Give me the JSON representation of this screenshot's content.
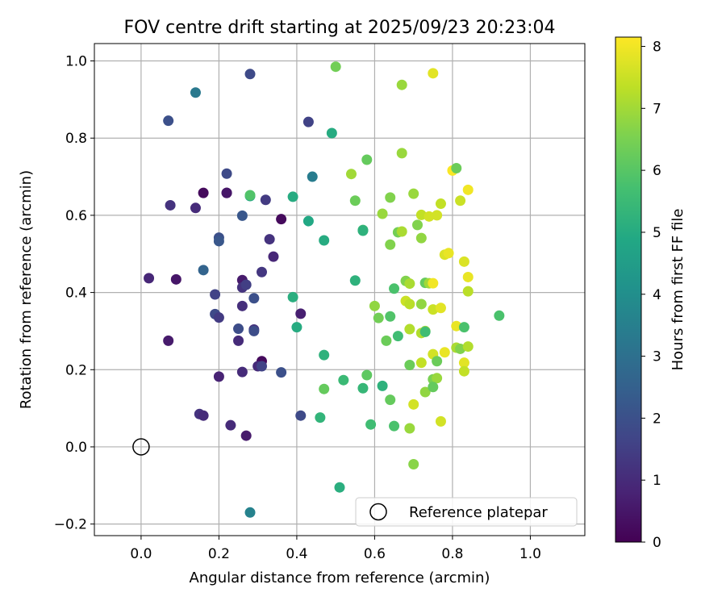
{
  "chart_data": {
    "type": "scatter",
    "title": "FOV centre drift starting at 2025/09/23 20:23:04",
    "xlabel": "Angular distance from reference (arcmin)",
    "ylabel": "Rotation from reference (arcmin)",
    "xlim": [
      -0.12,
      1.14
    ],
    "ylim": [
      -0.23,
      1.045
    ],
    "x_ticks": [
      0.0,
      0.2,
      0.4,
      0.6,
      0.8,
      1.0
    ],
    "x_tick_labels": [
      "0.0",
      "0.2",
      "0.4",
      "0.6",
      "0.8",
      "1.0"
    ],
    "y_ticks": [
      -0.2,
      0.0,
      0.2,
      0.4,
      0.6,
      0.8,
      1.0
    ],
    "y_tick_labels": [
      "−0.2",
      "0.0",
      "0.2",
      "0.4",
      "0.6",
      "0.8",
      "1.0"
    ],
    "grid": true,
    "colormap": "viridis",
    "colorbar": {
      "label": "Hours from first FF file",
      "range": [
        0,
        8.15
      ],
      "ticks": [
        0,
        1,
        2,
        3,
        4,
        5,
        6,
        7,
        8
      ],
      "tick_labels": [
        "0",
        "1",
        "2",
        "3",
        "4",
        "5",
        "6",
        "7",
        "8"
      ]
    },
    "legend": {
      "label": "Reference platepar",
      "location": "lower-right"
    },
    "reference_point": {
      "x": 0.0,
      "y": 0.0
    },
    "points": [
      {
        "x": 0.28,
        "y": 0.966,
        "t": 1.8
      },
      {
        "x": 0.14,
        "y": 0.918,
        "t": 3.3
      },
      {
        "x": 0.07,
        "y": 0.845,
        "t": 2.0
      },
      {
        "x": 0.22,
        "y": 0.708,
        "t": 1.8
      },
      {
        "x": 0.16,
        "y": 0.658,
        "t": 0.2
      },
      {
        "x": 0.22,
        "y": 0.658,
        "t": 0.3
      },
      {
        "x": 0.22,
        "y": 0.658,
        "t": 0.5
      },
      {
        "x": 0.075,
        "y": 0.626,
        "t": 1.2
      },
      {
        "x": 0.14,
        "y": 0.619,
        "t": 1.0
      },
      {
        "x": 0.26,
        "y": 0.599,
        "t": 2.2
      },
      {
        "x": 0.2,
        "y": 0.542,
        "t": 2.0
      },
      {
        "x": 0.2,
        "y": 0.533,
        "t": 2.2
      },
      {
        "x": 0.16,
        "y": 0.458,
        "t": 2.6
      },
      {
        "x": 0.02,
        "y": 0.437,
        "t": 0.9
      },
      {
        "x": 0.09,
        "y": 0.434,
        "t": 0.5
      },
      {
        "x": 0.26,
        "y": 0.432,
        "t": 0.6
      },
      {
        "x": 0.26,
        "y": 0.413,
        "t": 1.2
      },
      {
        "x": 0.27,
        "y": 0.42,
        "t": 1.5
      },
      {
        "x": 0.19,
        "y": 0.395,
        "t": 1.6
      },
      {
        "x": 0.29,
        "y": 0.385,
        "t": 2.0
      },
      {
        "x": 0.26,
        "y": 0.365,
        "t": 1.1
      },
      {
        "x": 0.19,
        "y": 0.344,
        "t": 1.8
      },
      {
        "x": 0.2,
        "y": 0.335,
        "t": 1.4
      },
      {
        "x": 0.25,
        "y": 0.306,
        "t": 1.9
      },
      {
        "x": 0.29,
        "y": 0.304,
        "t": 1.2
      },
      {
        "x": 0.29,
        "y": 0.3,
        "t": 1.9
      },
      {
        "x": 0.07,
        "y": 0.275,
        "t": 0.6
      },
      {
        "x": 0.25,
        "y": 0.275,
        "t": 1.0
      },
      {
        "x": 0.31,
        "y": 0.222,
        "t": 0.2
      },
      {
        "x": 0.3,
        "y": 0.209,
        "t": 1.0
      },
      {
        "x": 0.31,
        "y": 0.209,
        "t": 1.6
      },
      {
        "x": 0.26,
        "y": 0.194,
        "t": 1.0
      },
      {
        "x": 0.36,
        "y": 0.193,
        "t": 2.0
      },
      {
        "x": 0.2,
        "y": 0.182,
        "t": 0.8
      },
      {
        "x": 0.15,
        "y": 0.085,
        "t": 1.2
      },
      {
        "x": 0.16,
        "y": 0.081,
        "t": 1.0
      },
      {
        "x": 0.41,
        "y": 0.081,
        "t": 1.8
      },
      {
        "x": 0.23,
        "y": 0.056,
        "t": 1.0
      },
      {
        "x": 0.27,
        "y": 0.029,
        "t": 0.6
      },
      {
        "x": 0.28,
        "y": -0.17,
        "t": 3.6
      },
      {
        "x": 0.32,
        "y": 0.64,
        "t": 1.4
      },
      {
        "x": 0.33,
        "y": 0.538,
        "t": 1.2
      },
      {
        "x": 0.36,
        "y": 0.59,
        "t": 0.2
      },
      {
        "x": 0.31,
        "y": 0.453,
        "t": 1.3
      },
      {
        "x": 0.34,
        "y": 0.493,
        "t": 0.9
      },
      {
        "x": 0.41,
        "y": 0.345,
        "t": 0.7
      },
      {
        "x": 0.43,
        "y": 0.842,
        "t": 1.6
      },
      {
        "x": 0.44,
        "y": 0.7,
        "t": 3.4
      },
      {
        "x": 0.28,
        "y": 0.65,
        "t": 4.8
      },
      {
        "x": 0.28,
        "y": 0.652,
        "t": 5.9
      },
      {
        "x": 0.39,
        "y": 0.648,
        "t": 5.0
      },
      {
        "x": 0.43,
        "y": 0.585,
        "t": 4.9
      },
      {
        "x": 0.47,
        "y": 0.535,
        "t": 5.0
      },
      {
        "x": 0.39,
        "y": 0.388,
        "t": 5.1
      },
      {
        "x": 0.4,
        "y": 0.31,
        "t": 5.0
      },
      {
        "x": 0.47,
        "y": 0.238,
        "t": 5.2
      },
      {
        "x": 0.49,
        "y": 0.813,
        "t": 5.0
      },
      {
        "x": 0.5,
        "y": 0.985,
        "t": 6.4
      },
      {
        "x": 0.54,
        "y": 0.707,
        "t": 7.0
      },
      {
        "x": 0.58,
        "y": 0.744,
        "t": 6.2
      },
      {
        "x": 0.55,
        "y": 0.638,
        "t": 6.3
      },
      {
        "x": 0.57,
        "y": 0.562,
        "t": 5.5
      },
      {
        "x": 0.57,
        "y": 0.56,
        "t": 5.2
      },
      {
        "x": 0.55,
        "y": 0.431,
        "t": 5.2
      },
      {
        "x": 0.47,
        "y": 0.15,
        "t": 6.2
      },
      {
        "x": 0.52,
        "y": 0.173,
        "t": 5.5
      },
      {
        "x": 0.46,
        "y": 0.076,
        "t": 5.3
      },
      {
        "x": 0.51,
        "y": -0.105,
        "t": 5.1
      },
      {
        "x": 0.57,
        "y": 0.152,
        "t": 5.4
      },
      {
        "x": 0.58,
        "y": 0.186,
        "t": 6.1
      },
      {
        "x": 0.59,
        "y": 0.058,
        "t": 5.6
      },
      {
        "x": 0.6,
        "y": 0.365,
        "t": 6.8
      },
      {
        "x": 0.61,
        "y": 0.334,
        "t": 6.4
      },
      {
        "x": 0.62,
        "y": 0.158,
        "t": 5.2
      },
      {
        "x": 0.63,
        "y": 0.275,
        "t": 6.3
      },
      {
        "x": 0.64,
        "y": 0.646,
        "t": 6.6
      },
      {
        "x": 0.62,
        "y": 0.604,
        "t": 6.9
      },
      {
        "x": 0.66,
        "y": 0.556,
        "t": 6.4
      },
      {
        "x": 0.67,
        "y": 0.558,
        "t": 7.1
      },
      {
        "x": 0.64,
        "y": 0.524,
        "t": 6.6
      },
      {
        "x": 0.65,
        "y": 0.41,
        "t": 5.8
      },
      {
        "x": 0.64,
        "y": 0.338,
        "t": 5.9
      },
      {
        "x": 0.66,
        "y": 0.287,
        "t": 5.6
      },
      {
        "x": 0.64,
        "y": 0.122,
        "t": 6.2
      },
      {
        "x": 0.65,
        "y": 0.054,
        "t": 5.8
      },
      {
        "x": 0.67,
        "y": 0.938,
        "t": 6.9
      },
      {
        "x": 0.67,
        "y": 0.761,
        "t": 6.9
      },
      {
        "x": 0.7,
        "y": 0.656,
        "t": 6.9
      },
      {
        "x": 0.71,
        "y": 0.575,
        "t": 6.6
      },
      {
        "x": 0.72,
        "y": 0.541,
        "t": 6.8
      },
      {
        "x": 0.72,
        "y": 0.601,
        "t": 7.4
      },
      {
        "x": 0.68,
        "y": 0.43,
        "t": 6.6
      },
      {
        "x": 0.69,
        "y": 0.423,
        "t": 7.1
      },
      {
        "x": 0.68,
        "y": 0.378,
        "t": 7.5
      },
      {
        "x": 0.69,
        "y": 0.37,
        "t": 7.3
      },
      {
        "x": 0.72,
        "y": 0.37,
        "t": 6.8
      },
      {
        "x": 0.69,
        "y": 0.305,
        "t": 7.2
      },
      {
        "x": 0.73,
        "y": 0.3,
        "t": 6.9
      },
      {
        "x": 0.72,
        "y": 0.295,
        "t": 7.2
      },
      {
        "x": 0.73,
        "y": 0.298,
        "t": 5.6
      },
      {
        "x": 0.73,
        "y": 0.425,
        "t": 6.2
      },
      {
        "x": 0.69,
        "y": 0.212,
        "t": 6.3
      },
      {
        "x": 0.72,
        "y": 0.218,
        "t": 7.4
      },
      {
        "x": 0.7,
        "y": 0.11,
        "t": 7.6
      },
      {
        "x": 0.69,
        "y": 0.048,
        "t": 6.9
      },
      {
        "x": 0.73,
        "y": 0.142,
        "t": 6.8
      },
      {
        "x": 0.7,
        "y": -0.045,
        "t": 6.7
      },
      {
        "x": 0.75,
        "y": 0.968,
        "t": 7.8
      },
      {
        "x": 0.74,
        "y": 0.597,
        "t": 7.6
      },
      {
        "x": 0.76,
        "y": 0.6,
        "t": 7.6
      },
      {
        "x": 0.77,
        "y": 0.63,
        "t": 7.4
      },
      {
        "x": 0.74,
        "y": 0.424,
        "t": 7.0
      },
      {
        "x": 0.75,
        "y": 0.424,
        "t": 8.0
      },
      {
        "x": 0.75,
        "y": 0.356,
        "t": 7.5
      },
      {
        "x": 0.77,
        "y": 0.36,
        "t": 7.8
      },
      {
        "x": 0.75,
        "y": 0.24,
        "t": 7.6
      },
      {
        "x": 0.78,
        "y": 0.245,
        "t": 7.9
      },
      {
        "x": 0.76,
        "y": 0.222,
        "t": 6.3
      },
      {
        "x": 0.75,
        "y": 0.175,
        "t": 6.5
      },
      {
        "x": 0.76,
        "y": 0.178,
        "t": 6.9
      },
      {
        "x": 0.75,
        "y": 0.155,
        "t": 6.2
      },
      {
        "x": 0.77,
        "y": 0.066,
        "t": 7.6
      },
      {
        "x": 0.8,
        "y": 0.716,
        "t": 8.1
      },
      {
        "x": 0.81,
        "y": 0.722,
        "t": 6.3
      },
      {
        "x": 0.82,
        "y": 0.638,
        "t": 7.5
      },
      {
        "x": 0.84,
        "y": 0.666,
        "t": 8.0
      },
      {
        "x": 0.78,
        "y": 0.498,
        "t": 7.7
      },
      {
        "x": 0.79,
        "y": 0.502,
        "t": 7.9
      },
      {
        "x": 0.83,
        "y": 0.48,
        "t": 7.7
      },
      {
        "x": 0.84,
        "y": 0.44,
        "t": 7.9
      },
      {
        "x": 0.84,
        "y": 0.403,
        "t": 7.3
      },
      {
        "x": 0.81,
        "y": 0.313,
        "t": 7.9
      },
      {
        "x": 0.83,
        "y": 0.31,
        "t": 5.8
      },
      {
        "x": 0.81,
        "y": 0.257,
        "t": 7.1
      },
      {
        "x": 0.82,
        "y": 0.254,
        "t": 6.6
      },
      {
        "x": 0.84,
        "y": 0.26,
        "t": 7.2
      },
      {
        "x": 0.83,
        "y": 0.218,
        "t": 7.8
      },
      {
        "x": 0.83,
        "y": 0.196,
        "t": 7.4
      },
      {
        "x": 0.92,
        "y": 0.34,
        "t": 5.8
      }
    ]
  }
}
